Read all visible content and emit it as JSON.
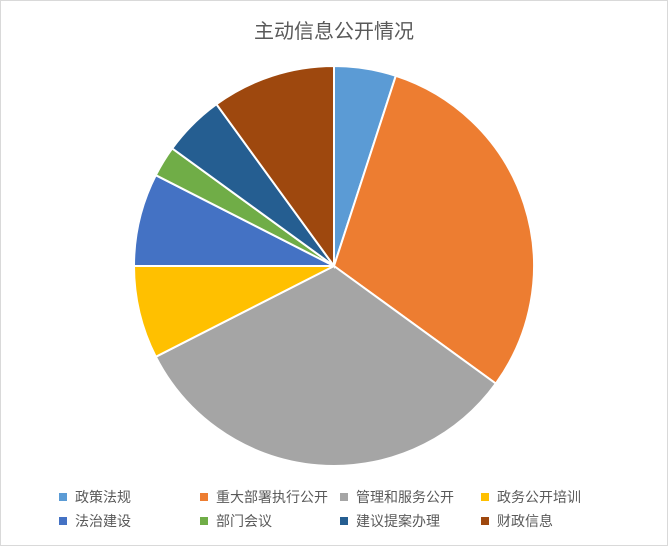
{
  "chart_data": {
    "type": "pie",
    "title": "主动信息公开情况",
    "categories": [
      "政策法规",
      "重大部署执行公开",
      "管理和服务公开",
      "政务公开培训",
      "法治建设",
      "部门会议",
      "建议提案办理",
      "财政信息"
    ],
    "values": [
      2,
      12,
      13,
      3,
      3,
      1,
      2,
      4
    ],
    "colors": [
      "#5b9bd5",
      "#ed7d31",
      "#a5a5a5",
      "#ffc000",
      "#4472c4",
      "#70ad47",
      "#255e91",
      "#9e480e"
    ],
    "start_angle": "top, clockwise",
    "legend_position": "bottom"
  }
}
